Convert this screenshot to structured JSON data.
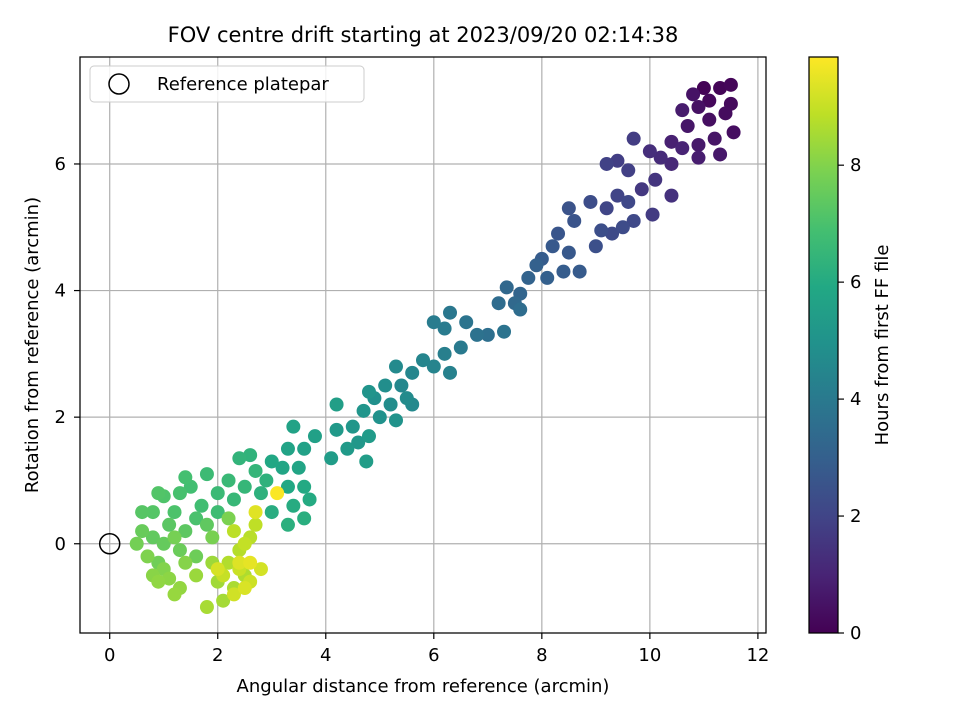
{
  "chart_data": {
    "type": "scatter",
    "title": "FOV centre drift starting at 2023/09/20 02:14:38",
    "xlabel": "Angular distance from reference (arcmin)",
    "ylabel": "Rotation from reference (arcmin)",
    "xlim": [
      -0.55,
      12.15
    ],
    "ylim": [
      -1.41,
      7.69
    ],
    "xticks": [
      0,
      2,
      4,
      6,
      8,
      10,
      12
    ],
    "yticks": [
      0,
      2,
      4,
      6
    ],
    "grid": true,
    "legend": {
      "location": "upper-left",
      "entries": [
        "Reference platepar"
      ]
    },
    "reference_point": {
      "x": 0,
      "y": 0,
      "marker": "open-circle",
      "label": "Reference platepar"
    },
    "colorbar": {
      "label": "Hours from first FF file",
      "colormap": "viridis",
      "range": [
        0,
        9.85
      ],
      "ticks": [
        0,
        2,
        4,
        6,
        8
      ]
    },
    "series": [
      {
        "name": "FOV centre drift",
        "columns": [
          "x",
          "y",
          "hours"
        ],
        "points": [
          [
            11.0,
            7.2,
            0.05
          ],
          [
            11.3,
            7.2,
            0.1
          ],
          [
            11.5,
            7.25,
            0.15
          ],
          [
            11.1,
            7.0,
            0.2
          ],
          [
            11.5,
            6.95,
            0.25
          ],
          [
            11.4,
            6.8,
            0.3
          ],
          [
            11.55,
            6.5,
            0.35
          ],
          [
            11.1,
            6.7,
            0.4
          ],
          [
            10.9,
            6.9,
            0.45
          ],
          [
            10.8,
            7.1,
            0.5
          ],
          [
            11.2,
            6.4,
            0.55
          ],
          [
            10.7,
            6.6,
            0.6
          ],
          [
            11.3,
            6.15,
            0.65
          ],
          [
            10.9,
            6.3,
            0.7
          ],
          [
            10.6,
            6.85,
            0.75
          ],
          [
            10.9,
            6.1,
            0.8
          ],
          [
            10.4,
            6.35,
            0.9
          ],
          [
            10.6,
            6.25,
            1.0
          ],
          [
            10.4,
            6.0,
            1.1
          ],
          [
            10.2,
            6.1,
            1.2
          ],
          [
            10.0,
            6.2,
            1.3
          ],
          [
            10.4,
            5.5,
            1.4
          ],
          [
            10.1,
            5.75,
            1.5
          ],
          [
            9.85,
            5.6,
            1.6
          ],
          [
            10.05,
            5.2,
            1.7
          ],
          [
            9.7,
            6.4,
            1.75
          ],
          [
            9.4,
            6.05,
            1.8
          ],
          [
            9.6,
            5.9,
            1.85
          ],
          [
            9.2,
            6.0,
            1.9
          ],
          [
            9.4,
            5.5,
            2.0
          ],
          [
            9.2,
            5.3,
            2.05
          ],
          [
            9.6,
            5.4,
            2.1
          ],
          [
            9.7,
            5.1,
            2.15
          ],
          [
            9.3,
            4.9,
            2.2
          ],
          [
            9.5,
            5.0,
            2.25
          ],
          [
            8.9,
            5.4,
            2.3
          ],
          [
            9.1,
            4.95,
            2.35
          ],
          [
            9.0,
            4.7,
            2.4
          ],
          [
            8.5,
            5.3,
            2.5
          ],
          [
            8.6,
            5.1,
            2.55
          ],
          [
            8.3,
            4.9,
            2.6
          ],
          [
            8.5,
            4.6,
            2.7
          ],
          [
            8.2,
            4.7,
            2.75
          ],
          [
            8.7,
            4.3,
            2.8
          ],
          [
            8.0,
            4.5,
            2.85
          ],
          [
            8.4,
            4.3,
            2.9
          ],
          [
            8.1,
            4.2,
            3.0
          ],
          [
            7.9,
            4.4,
            3.05
          ],
          [
            7.75,
            4.2,
            3.1
          ],
          [
            7.6,
            3.95,
            3.2
          ],
          [
            7.35,
            4.05,
            3.3
          ],
          [
            7.5,
            3.8,
            3.35
          ],
          [
            7.2,
            3.8,
            3.45
          ],
          [
            7.6,
            3.7,
            3.5
          ],
          [
            7.0,
            3.3,
            3.6
          ],
          [
            6.8,
            3.3,
            3.7
          ],
          [
            7.3,
            3.35,
            3.75
          ],
          [
            6.6,
            3.5,
            3.8
          ],
          [
            6.3,
            3.65,
            3.9
          ],
          [
            6.5,
            3.1,
            4.0
          ],
          [
            6.2,
            3.4,
            4.05
          ],
          [
            6.0,
            3.5,
            4.1
          ],
          [
            6.2,
            3.0,
            4.2
          ],
          [
            6.3,
            2.7,
            4.3
          ],
          [
            6.0,
            2.8,
            4.4
          ],
          [
            5.8,
            2.9,
            4.45
          ],
          [
            5.6,
            2.7,
            4.5
          ],
          [
            5.4,
            2.5,
            4.55
          ],
          [
            5.6,
            2.2,
            4.6
          ],
          [
            5.3,
            2.8,
            4.65
          ],
          [
            5.5,
            2.3,
            4.7
          ],
          [
            5.2,
            2.2,
            4.75
          ],
          [
            5.1,
            2.5,
            4.8
          ],
          [
            4.9,
            2.3,
            4.9
          ],
          [
            5.0,
            2.0,
            4.95
          ],
          [
            5.3,
            1.95,
            5.0
          ],
          [
            4.8,
            2.4,
            5.05
          ],
          [
            4.7,
            2.1,
            5.1
          ],
          [
            4.5,
            1.85,
            5.15
          ],
          [
            4.6,
            1.6,
            5.2
          ],
          [
            4.2,
            1.8,
            5.25
          ],
          [
            4.4,
            1.5,
            5.3
          ],
          [
            4.8,
            1.7,
            5.35
          ],
          [
            4.1,
            1.35,
            5.4
          ],
          [
            4.75,
            1.3,
            5.45
          ],
          [
            4.2,
            2.2,
            5.5
          ],
          [
            3.8,
            1.7,
            5.55
          ],
          [
            3.6,
            1.5,
            5.6
          ],
          [
            3.4,
            1.85,
            5.65
          ],
          [
            3.3,
            1.5,
            5.7
          ],
          [
            3.5,
            1.2,
            5.75
          ],
          [
            3.2,
            1.2,
            5.8
          ],
          [
            3.0,
            1.3,
            5.85
          ],
          [
            3.3,
            0.9,
            5.9
          ],
          [
            3.6,
            0.9,
            5.95
          ],
          [
            3.7,
            0.7,
            6.0
          ],
          [
            3.4,
            0.6,
            6.05
          ],
          [
            3.0,
            0.5,
            6.1
          ],
          [
            3.6,
            0.4,
            6.15
          ],
          [
            3.3,
            0.3,
            6.2
          ],
          [
            2.8,
            0.8,
            6.25
          ],
          [
            2.9,
            1.0,
            6.3
          ],
          [
            2.6,
            1.4,
            6.35
          ],
          [
            2.4,
            1.35,
            6.4
          ],
          [
            2.7,
            1.15,
            6.45
          ],
          [
            2.5,
            0.9,
            6.5
          ],
          [
            2.3,
            0.7,
            6.55
          ],
          [
            2.2,
            1.0,
            6.6
          ],
          [
            2.0,
            0.8,
            6.65
          ],
          [
            1.8,
            1.1,
            6.7
          ],
          [
            2.0,
            0.5,
            6.75
          ],
          [
            1.7,
            0.6,
            6.8
          ],
          [
            1.5,
            0.9,
            6.85
          ],
          [
            1.4,
            1.05,
            6.9
          ],
          [
            1.3,
            0.8,
            6.95
          ],
          [
            1.6,
            0.4,
            7.0
          ],
          [
            1.2,
            0.5,
            7.05
          ],
          [
            1.0,
            0.75,
            7.1
          ],
          [
            0.9,
            0.8,
            7.15
          ],
          [
            0.8,
            0.5,
            7.2
          ],
          [
            0.6,
            0.5,
            7.25
          ],
          [
            1.1,
            0.3,
            7.3
          ],
          [
            1.4,
            0.2,
            7.35
          ],
          [
            1.8,
            0.3,
            7.4
          ],
          [
            0.8,
            0.1,
            7.45
          ],
          [
            1.0,
            0.0,
            7.5
          ],
          [
            0.6,
            0.2,
            7.55
          ],
          [
            1.3,
            -0.1,
            7.6
          ],
          [
            1.6,
            -0.2,
            7.65
          ],
          [
            0.9,
            -0.3,
            7.7
          ],
          [
            0.5,
            0.0,
            7.75
          ],
          [
            1.2,
            0.1,
            7.8
          ],
          [
            1.9,
            0.1,
            7.85
          ],
          [
            2.2,
            0.4,
            7.9
          ],
          [
            0.7,
            -0.2,
            7.95
          ],
          [
            1.0,
            -0.4,
            8.0
          ],
          [
            1.4,
            -0.3,
            8.05
          ],
          [
            0.8,
            -0.5,
            8.1
          ],
          [
            1.1,
            -0.55,
            8.15
          ],
          [
            0.9,
            -0.6,
            8.2
          ],
          [
            1.3,
            -0.7,
            8.25
          ],
          [
            1.2,
            -0.8,
            8.3
          ],
          [
            1.6,
            -0.5,
            8.35
          ],
          [
            1.9,
            -0.3,
            8.4
          ],
          [
            2.0,
            -0.6,
            8.45
          ],
          [
            2.1,
            -0.9,
            8.5
          ],
          [
            1.8,
            -1.0,
            8.55
          ],
          [
            2.3,
            -0.7,
            8.6
          ],
          [
            2.5,
            -0.5,
            8.65
          ],
          [
            2.2,
            -0.3,
            8.7
          ],
          [
            2.4,
            -0.1,
            8.75
          ],
          [
            2.6,
            0.1,
            8.8
          ],
          [
            2.3,
            0.2,
            8.85
          ],
          [
            2.7,
            0.3,
            8.9
          ],
          [
            2.5,
            0.0,
            8.95
          ],
          [
            2.1,
            -0.5,
            9.0
          ],
          [
            2.4,
            -0.4,
            9.05
          ],
          [
            2.6,
            -0.6,
            9.1
          ],
          [
            2.3,
            -0.8,
            9.15
          ],
          [
            2.8,
            -0.4,
            9.2
          ],
          [
            2.0,
            -0.4,
            9.25
          ],
          [
            2.5,
            -0.7,
            9.3
          ],
          [
            2.4,
            -0.3,
            9.35
          ],
          [
            2.7,
            0.5,
            9.4
          ],
          [
            2.6,
            -0.3,
            9.5
          ],
          [
            3.1,
            0.8,
            9.8
          ]
        ]
      }
    ]
  }
}
